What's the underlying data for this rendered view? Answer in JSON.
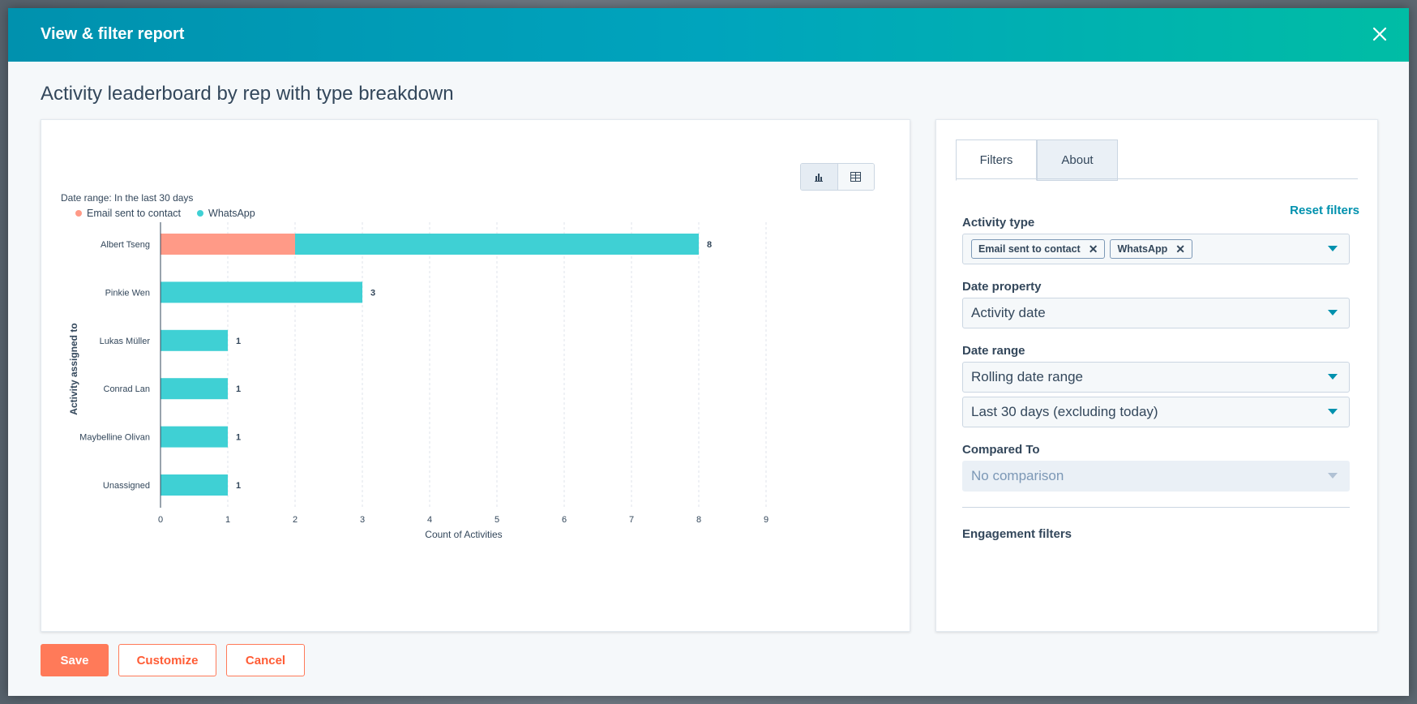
{
  "modal": {
    "title": "View & filter report"
  },
  "report": {
    "title": "Activity leaderboard by rep with type breakdown"
  },
  "chart": {
    "date_range": "Date range: In the last 30 days"
  },
  "chart_data": {
    "type": "bar",
    "orientation": "horizontal",
    "stacked": true,
    "categories": [
      "Albert Tseng",
      "Pinkie Wen",
      "Lukas Müller",
      "Conrad Lan",
      "Maybelline Olivan",
      "Unassigned"
    ],
    "series": [
      {
        "name": "Email sent to contact",
        "color": "#ff9a87",
        "values": [
          2,
          0,
          0,
          0,
          0,
          0
        ]
      },
      {
        "name": "WhatsApp",
        "color": "#3fd0d4",
        "values": [
          6,
          3,
          1,
          1,
          1,
          1
        ]
      }
    ],
    "totals": [
      8,
      3,
      1,
      1,
      1,
      1
    ],
    "xlabel": "Count of Activities",
    "ylabel": "Activity assigned to",
    "xlim": [
      0,
      9
    ],
    "xticks": [
      0,
      1,
      2,
      3,
      4,
      5,
      6,
      7,
      8,
      9
    ],
    "grid": true,
    "legend_position": "top-left"
  },
  "filters": {
    "tabs": [
      "Filters",
      "About"
    ],
    "reset_label": "Reset filters",
    "activity_type": {
      "label": "Activity type",
      "chips": [
        "Email sent to contact",
        "WhatsApp"
      ]
    },
    "date_property": {
      "label": "Date property",
      "value": "Activity date"
    },
    "date_range": {
      "label": "Date range",
      "value": "Rolling date range",
      "sub_value": "Last 30 days (excluding today)"
    },
    "compared_to": {
      "label": "Compared To",
      "value": "No comparison"
    },
    "engagement": {
      "label": "Engagement filters"
    }
  },
  "footer": {
    "save": "Save",
    "customize": "Customize",
    "cancel": "Cancel"
  },
  "colors": {
    "accent": "#0091ae",
    "primary_button": "#ff7a59",
    "email_series": "#ff9a87",
    "whatsapp_series": "#3fd0d4"
  }
}
